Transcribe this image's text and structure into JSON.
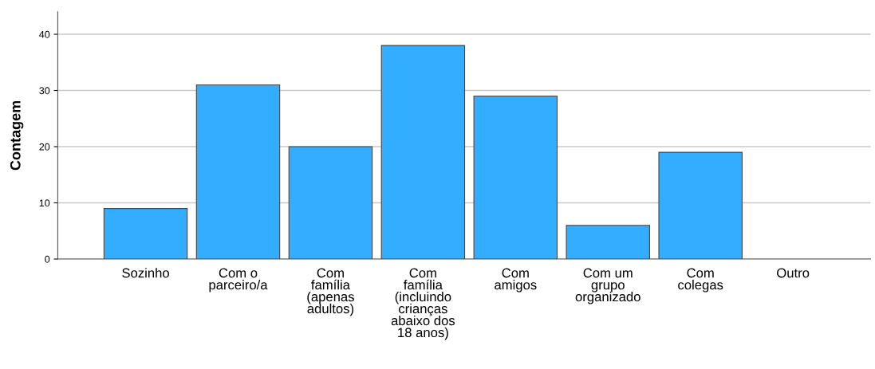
{
  "chart_data": {
    "type": "bar",
    "ylabel": "Contagem",
    "categories": [
      "Sozinho",
      "Com o\nparceiro/a",
      "Com\nfamília\n(apenas\nadultos)",
      "Com\nfamília\n(incluindo\ncrianças\nabaixo dos\n18 anos)",
      "Com\namigos",
      "Com um\ngrupo\norganizado",
      "Com\ncolegas",
      "Outro"
    ],
    "values": [
      9,
      31,
      20,
      38,
      29,
      6,
      19,
      0
    ],
    "color": "#33adff",
    "ylim": [
      0,
      44
    ],
    "yticks": [
      0,
      10,
      20,
      30,
      40
    ],
    "grid": "y"
  }
}
